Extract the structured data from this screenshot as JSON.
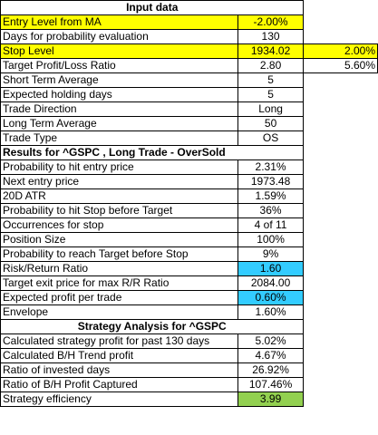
{
  "colors": {
    "yellow": "#ffff00",
    "blue": "#33ccff",
    "green": "#92d050"
  },
  "rows": [
    {
      "type": "header",
      "text": "Input data",
      "align": "center"
    },
    {
      "label": "Entry Level from MA",
      "value": "-2.00%",
      "label_hl": "yellow",
      "value_hl": "yellow"
    },
    {
      "label": "Days for probability evaluation",
      "value": "130"
    },
    {
      "label": "Stop Level",
      "value": "1934.02",
      "extra": "2.00%",
      "label_hl": "yellow",
      "value_hl": "yellow",
      "extra_hl": "yellow"
    },
    {
      "label": "Target Profit/Loss Ratio",
      "value": "2.80",
      "extra": "5.60%"
    },
    {
      "label": "Short Term Average",
      "value": "5"
    },
    {
      "label": "Expected holding days",
      "value": "5"
    },
    {
      "label": "Trade Direction",
      "value": "Long"
    },
    {
      "label": "Long Term Average",
      "value": "50"
    },
    {
      "label": "Trade Type",
      "value": "OS"
    },
    {
      "type": "header",
      "text": "Results for ^GSPC , Long Trade - OverSold",
      "align": "left"
    },
    {
      "label": "Probability to hit entry price",
      "value": "2.31%"
    },
    {
      "label": "Next entry price",
      "value": "1973.48"
    },
    {
      "label": "20D ATR",
      "value": "1.59%"
    },
    {
      "label": "Probability to hit Stop before Target",
      "value": "36%"
    },
    {
      "label": "Occurrences for stop",
      "value": "4 of 11"
    },
    {
      "label": "Position Size",
      "value": "100%"
    },
    {
      "label": "Probability to reach Target before Stop",
      "value": "9%"
    },
    {
      "label": "Risk/Return Ratio",
      "value": "1.60",
      "value_hl": "blue"
    },
    {
      "label": "Target exit price for max R/R Ratio",
      "value": "2084.00"
    },
    {
      "label": "Expected profit per trade",
      "value": "0.60%",
      "value_hl": "blue"
    },
    {
      "label": "Envelope",
      "value": "1.60%"
    },
    {
      "type": "header",
      "text": "Strategy Analysis for ^GSPC",
      "align": "center"
    },
    {
      "label": "Calculated strategy profit for past 130 days",
      "value": "5.02%"
    },
    {
      "label": "Calculated B/H Trend profit",
      "value": "4.67%"
    },
    {
      "label": "Ratio of invested days",
      "value": "26.92%"
    },
    {
      "label": "Ratio of B/H Profit Captured",
      "value": "107.46%"
    },
    {
      "label": "Strategy efficiency",
      "value": "3.99",
      "value_hl": "green"
    }
  ]
}
